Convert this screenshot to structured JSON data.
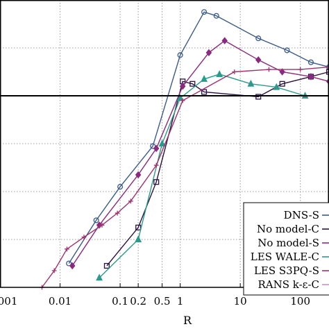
{
  "chart_data": {
    "type": "line",
    "title": "",
    "xlabel": "R",
    "ylabel": "",
    "x_scale": "log",
    "xlim": [
      0.001,
      300
    ],
    "ylim": [
      0,
      6
    ],
    "x_ticks": [
      {
        "value": 0.001,
        "label": ".001"
      },
      {
        "value": 0.01,
        "label": "0.01"
      },
      {
        "value": 0.1,
        "label": "0.1"
      },
      {
        "value": 0.2,
        "label": "0.2"
      },
      {
        "value": 0.5,
        "label": "0.5"
      },
      {
        "value": 1,
        "label": "1"
      },
      {
        "value": 10,
        "label": "10"
      },
      {
        "value": 100,
        "label": "100"
      }
    ],
    "y_gridlines": [
      1,
      2,
      3,
      4,
      5
    ],
    "reference_line": {
      "y": 4.0
    },
    "grid": true,
    "legend_position": "bottom-right",
    "series": [
      {
        "name": "DNS-S",
        "color": "#3a5a8c",
        "marker": "circle",
        "x": [
          0.014,
          0.04,
          0.1,
          0.35,
          1.0,
          2.5,
          4.0,
          20,
          60,
          150,
          300
        ],
        "y": [
          0.5,
          1.4,
          2.1,
          2.95,
          4.85,
          5.75,
          5.67,
          5.2,
          4.95,
          4.7,
          4.6
        ]
      },
      {
        "name": "No model-C",
        "color": "#2a1040",
        "marker": "square",
        "x": [
          0.06,
          0.2,
          0.4,
          1.1,
          1.6,
          2.5,
          20,
          50,
          150,
          300
        ],
        "y": [
          0.45,
          1.25,
          2.2,
          4.3,
          4.25,
          4.08,
          3.98,
          4.25,
          4.4,
          4.5
        ]
      },
      {
        "name": "No model-S",
        "color": "#8a2a7e",
        "marker": "diamond",
        "x": [
          0.016,
          0.045,
          0.2,
          0.4,
          1.1,
          3.0,
          5.5,
          20,
          50,
          150,
          300
        ],
        "y": [
          0.45,
          1.3,
          2.35,
          2.9,
          4.2,
          4.9,
          5.15,
          4.75,
          4.5,
          4.4,
          4.3
        ]
      },
      {
        "name": "LES WALE-C",
        "color": "#2a9a8a",
        "marker": "triangle",
        "x": [
          0.045,
          0.2,
          0.5,
          1.0,
          2.5,
          4.5,
          15,
          40,
          120
        ],
        "y": [
          0.2,
          1.0,
          3.0,
          3.95,
          4.35,
          4.45,
          4.25,
          4.18,
          4.0
        ]
      },
      {
        "name": "LES S3PQ-S",
        "color": "#a0306e",
        "marker": "plus",
        "x": [
          0.005,
          0.008,
          0.013,
          0.025,
          0.05,
          0.09,
          0.15,
          0.4,
          1.1,
          8,
          30,
          100,
          300
        ],
        "y": [
          0.0,
          0.35,
          0.8,
          1.05,
          1.3,
          1.55,
          1.8,
          2.55,
          3.9,
          4.5,
          4.55,
          4.55,
          4.6
        ]
      },
      {
        "name": "RANS k-ε-C",
        "color": "#d88ac0",
        "marker": "none",
        "x": [],
        "y": []
      }
    ]
  }
}
